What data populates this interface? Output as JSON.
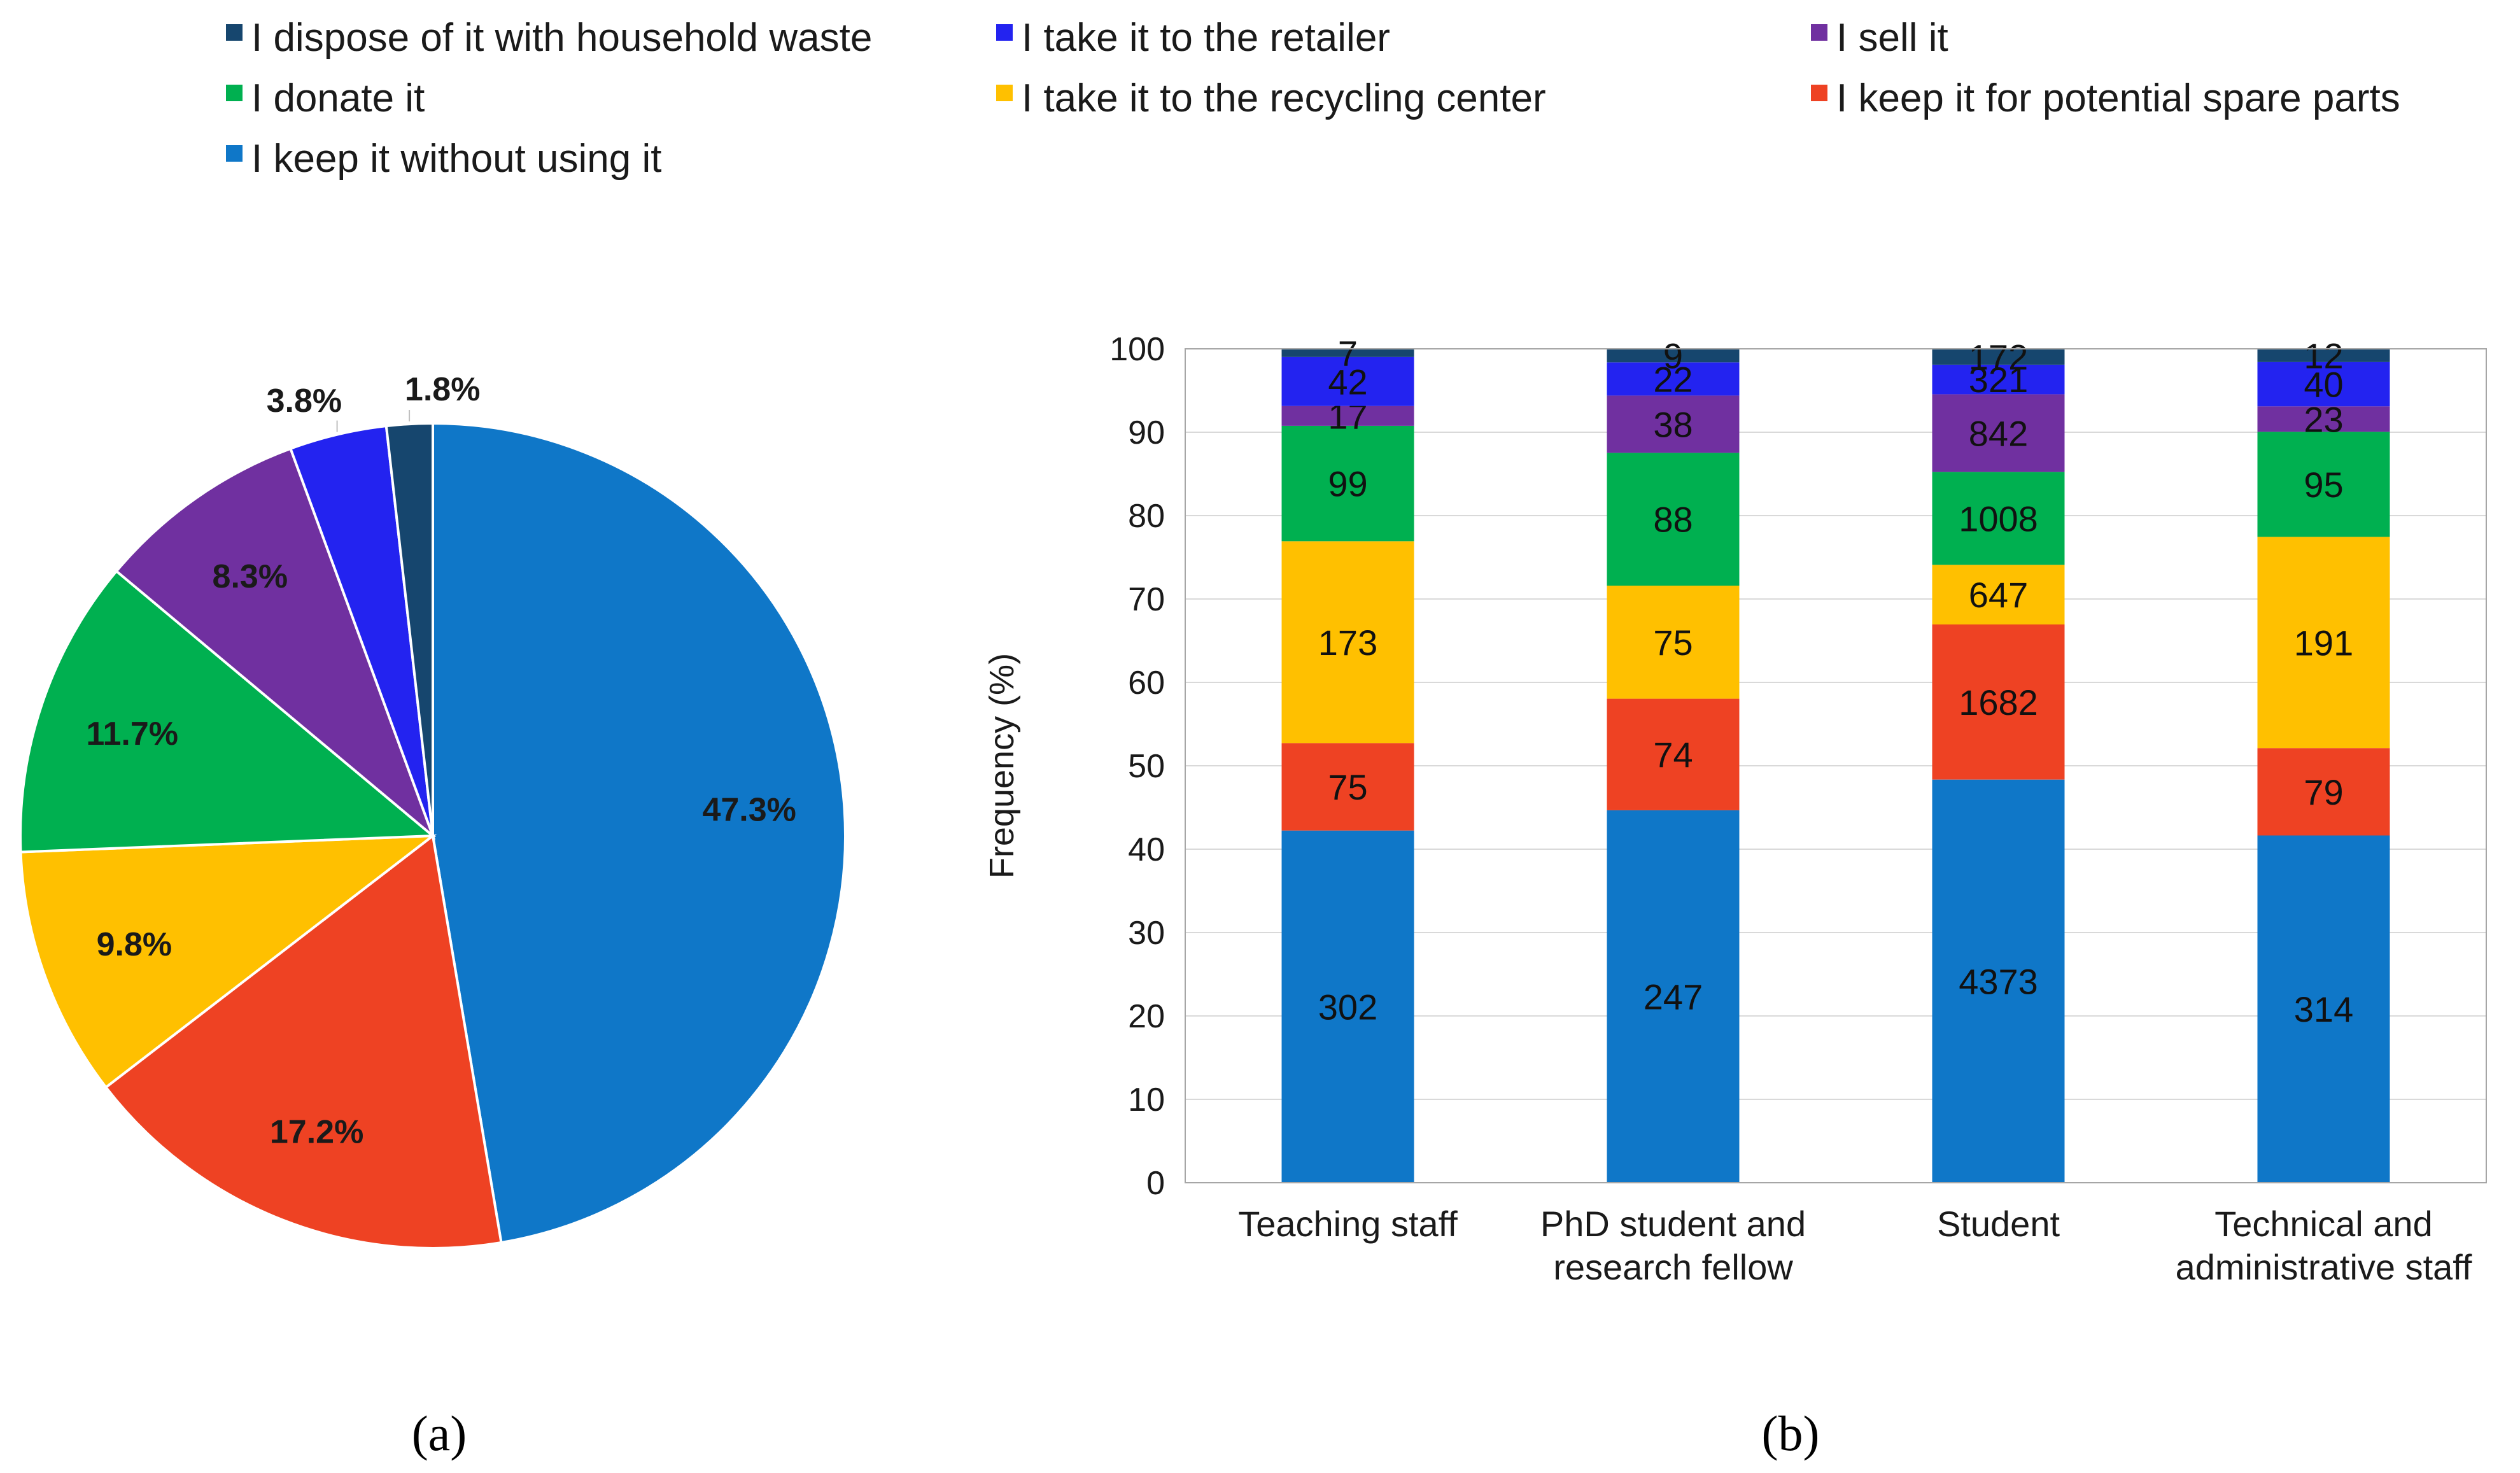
{
  "legend": [
    {
      "label": "I dispose of it with household waste",
      "color": "#16466e"
    },
    {
      "label": "I take it to the retailer",
      "color": "#2323f0"
    },
    {
      "label": "I sell it",
      "color": "#7030a0"
    },
    {
      "label": "I donate it",
      "color": "#00b050"
    },
    {
      "label": "I take it to the recycling center",
      "color": "#ffc000"
    },
    {
      "label": "I keep it for potential spare parts",
      "color": "#ee4223"
    },
    {
      "label": "I keep it without using it",
      "color": "#0f77c8"
    }
  ],
  "panels": {
    "a": "(a)",
    "b": "(b)"
  },
  "chart_data": [
    {
      "type": "pie",
      "panel": "(a)",
      "slices": [
        {
          "category": "I keep it without using it",
          "value": 47.3,
          "label": "47.3%"
        },
        {
          "category": "I keep it for potential spare parts",
          "value": 17.2,
          "label": "17.2%"
        },
        {
          "category": "I take it to the recycling center",
          "value": 9.8,
          "label": "9.8%"
        },
        {
          "category": "I donate it",
          "value": 11.7,
          "label": "11.7%"
        },
        {
          "category": "I sell it",
          "value": 8.3,
          "label": "8.3%"
        },
        {
          "category": "I take it to the retailer",
          "value": 3.8,
          "label": "3.8%"
        },
        {
          "category": "I dispose of it with household waste",
          "value": 1.8,
          "label": "1.8%"
        }
      ]
    },
    {
      "type": "bar",
      "stacked": true,
      "normalized": true,
      "panel": "(b)",
      "categories": [
        [
          "Teaching staff"
        ],
        [
          "PhD student and",
          "research fellow"
        ],
        [
          "Student"
        ],
        [
          "Technical and",
          "administrative staff"
        ]
      ],
      "ylabel": "Frequency (%)",
      "ylim": [
        0,
        100
      ],
      "yticks": [
        0,
        10,
        20,
        30,
        40,
        50,
        60,
        70,
        80,
        90,
        100
      ],
      "grid": true,
      "series": [
        {
          "name": "I keep it without using it",
          "values": [
            302,
            247,
            4373,
            314
          ]
        },
        {
          "name": "I keep it for potential spare parts",
          "values": [
            75,
            74,
            1682,
            79
          ]
        },
        {
          "name": "I take it to the recycling center",
          "values": [
            173,
            75,
            647,
            191
          ]
        },
        {
          "name": "I donate it",
          "values": [
            99,
            88,
            1008,
            95
          ]
        },
        {
          "name": "I sell it",
          "values": [
            17,
            38,
            842,
            23
          ]
        },
        {
          "name": "I take it to the retailer",
          "values": [
            42,
            22,
            321,
            40
          ]
        },
        {
          "name": "I dispose of it with household waste",
          "values": [
            7,
            9,
            172,
            12
          ]
        }
      ]
    }
  ]
}
